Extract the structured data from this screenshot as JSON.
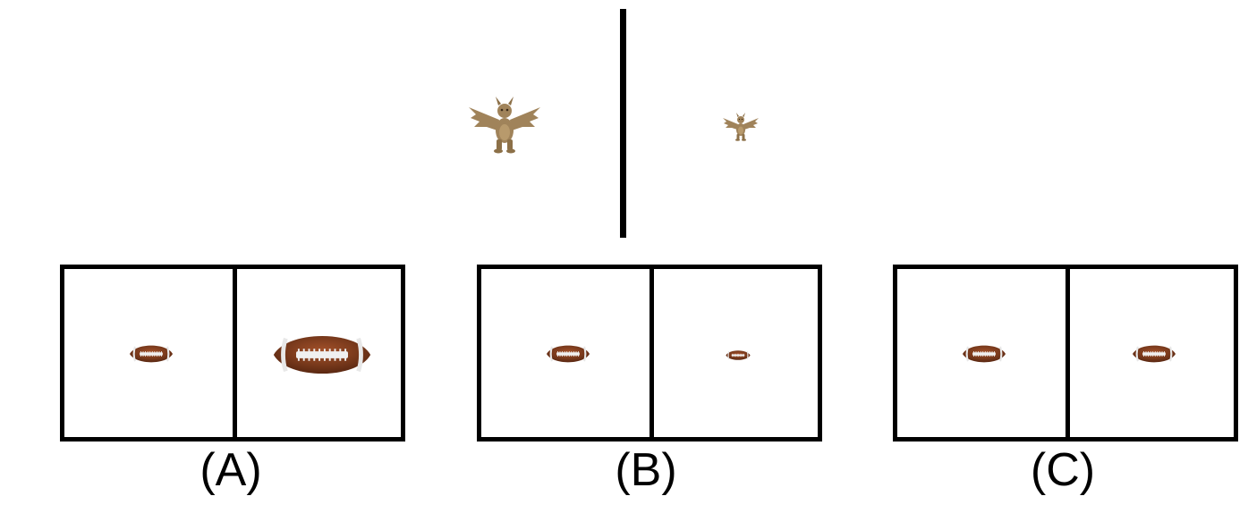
{
  "example": {
    "left_icon": "dragon-icon",
    "right_icon": "dragon-icon"
  },
  "options": [
    {
      "label": "(A)",
      "left_icon": "football-icon",
      "right_icon": "football-icon"
    },
    {
      "label": "(B)",
      "left_icon": "football-icon",
      "right_icon": "football-icon"
    },
    {
      "label": "(C)",
      "left_icon": "football-icon",
      "right_icon": "football-icon"
    }
  ],
  "colors": {
    "dragon": "#a0835a",
    "football": "#7a3a1c",
    "lines": "#000000",
    "background": "#ffffff"
  }
}
